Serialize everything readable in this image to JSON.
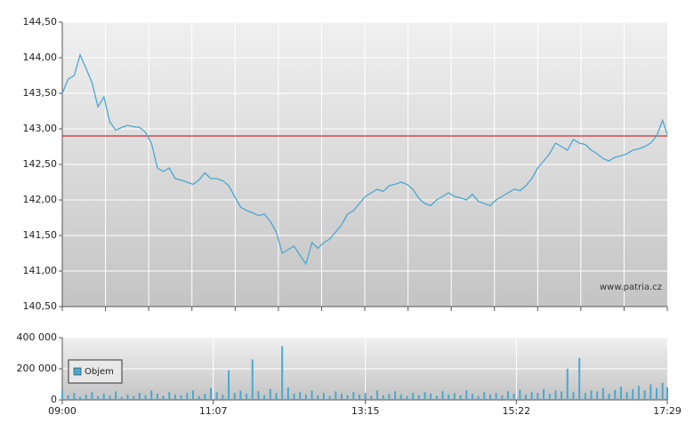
{
  "chart_data": [
    {
      "type": "line",
      "annotation": "www.patria.cz",
      "color": "#4aa8d0",
      "x": [
        0,
        5,
        10,
        15,
        20,
        25,
        30,
        35,
        40,
        45,
        50,
        55,
        60,
        65,
        70,
        75,
        80,
        85,
        90,
        95,
        100,
        105,
        110,
        115,
        120,
        125,
        130,
        135,
        140,
        145,
        150,
        155,
        160,
        165,
        170,
        175,
        180,
        185,
        190,
        195,
        200,
        205,
        210,
        215,
        220,
        225,
        230,
        235,
        240,
        245,
        250,
        255,
        260,
        265,
        270,
        275,
        280,
        285,
        290,
        295,
        300,
        305,
        310,
        315,
        320,
        325,
        330,
        335,
        340,
        345,
        350,
        355,
        360,
        365,
        370,
        375,
        380,
        385,
        390,
        395,
        400,
        405,
        410,
        415,
        420,
        425,
        430,
        435,
        440,
        445,
        450,
        455,
        460,
        465,
        470,
        475,
        480,
        485,
        490,
        495,
        500,
        505,
        509
      ],
      "values": [
        143.5,
        143.7,
        143.75,
        144.04,
        143.85,
        143.65,
        143.31,
        143.45,
        143.1,
        142.98,
        143.02,
        143.05,
        143.03,
        143.02,
        142.95,
        142.8,
        142.45,
        142.4,
        142.45,
        142.3,
        142.28,
        142.25,
        142.22,
        142.28,
        142.38,
        142.3,
        142.3,
        142.27,
        142.2,
        142.05,
        141.9,
        141.85,
        141.82,
        141.78,
        141.8,
        141.7,
        141.55,
        141.25,
        141.3,
        141.35,
        141.22,
        141.1,
        141.4,
        141.32,
        141.4,
        141.45,
        141.55,
        141.65,
        141.8,
        141.85,
        141.95,
        142.05,
        142.1,
        142.15,
        142.12,
        142.2,
        142.22,
        142.25,
        142.22,
        142.15,
        142.02,
        141.95,
        141.92,
        142.0,
        142.05,
        142.1,
        142.05,
        142.03,
        142.0,
        142.08,
        141.98,
        141.95,
        141.92,
        142.0,
        142.05,
        142.1,
        142.15,
        142.13,
        142.2,
        142.3,
        142.45,
        142.55,
        142.65,
        142.8,
        142.75,
        142.7,
        142.85,
        142.8,
        142.78,
        142.7,
        142.65,
        142.58,
        142.55,
        142.6,
        142.62,
        142.65,
        142.7,
        142.72,
        142.75,
        142.8,
        142.9,
        143.12,
        142.92
      ],
      "reference_line": {
        "value": 142.9,
        "color": "#cc0000"
      },
      "xlim": [
        0,
        509
      ],
      "xticks": [
        {
          "value": 0,
          "label": null
        },
        {
          "value": 36.36,
          "label": null
        },
        {
          "value": 72.71,
          "label": null
        },
        {
          "value": 109.07,
          "label": null
        },
        {
          "value": 145.43,
          "label": null
        },
        {
          "value": 181.79,
          "label": null
        },
        {
          "value": 218.14,
          "label": null
        },
        {
          "value": 254.5,
          "label": null
        },
        {
          "value": 290.86,
          "label": null
        },
        {
          "value": 327.21,
          "label": null
        },
        {
          "value": 363.57,
          "label": null
        },
        {
          "value": 399.93,
          "label": null
        },
        {
          "value": 436.29,
          "label": null
        },
        {
          "value": 472.64,
          "label": null
        },
        {
          "value": 509,
          "label": null
        }
      ],
      "ylim": [
        140.5,
        144.5
      ],
      "yticks": [
        {
          "value": 140.5,
          "label": "140,50"
        },
        {
          "value": 141,
          "label": "141,00"
        },
        {
          "value": 141.5,
          "label": "141,50"
        },
        {
          "value": 142,
          "label": "142,00"
        },
        {
          "value": 142.5,
          "label": "142,50"
        },
        {
          "value": 143,
          "label": "143,00"
        },
        {
          "value": 143.5,
          "label": "143,50"
        },
        {
          "value": 144,
          "label": "144,00"
        },
        {
          "value": 144.5,
          "label": "144,50"
        }
      ],
      "grid": true
    },
    {
      "type": "bar",
      "x": [
        0,
        5,
        10,
        15,
        20,
        25,
        30,
        35,
        40,
        45,
        50,
        55,
        60,
        65,
        70,
        75,
        80,
        85,
        90,
        95,
        100,
        105,
        110,
        115,
        120,
        125,
        130,
        135,
        140,
        145,
        150,
        155,
        160,
        165,
        170,
        175,
        180,
        185,
        190,
        195,
        200,
        205,
        210,
        215,
        220,
        225,
        230,
        235,
        240,
        245,
        250,
        255,
        260,
        265,
        270,
        275,
        280,
        285,
        290,
        295,
        300,
        305,
        310,
        315,
        320,
        325,
        330,
        335,
        340,
        345,
        350,
        355,
        360,
        365,
        370,
        375,
        380,
        385,
        390,
        395,
        400,
        405,
        410,
        415,
        420,
        425,
        430,
        435,
        440,
        445,
        450,
        455,
        460,
        465,
        470,
        475,
        480,
        485,
        490,
        495,
        500,
        505,
        509
      ],
      "series": [
        {
          "name": "Objem",
          "color": "#4aa8d0",
          "values": [
            60000,
            30000,
            45000,
            20000,
            35000,
            50000,
            25000,
            40000,
            30000,
            55000,
            20000,
            35000,
            25000,
            45000,
            30000,
            60000,
            40000,
            25000,
            50000,
            35000,
            30000,
            45000,
            60000,
            25000,
            40000,
            75000,
            50000,
            35000,
            190000,
            45000,
            60000,
            40000,
            260000,
            55000,
            30000,
            70000,
            45000,
            345000,
            80000,
            40000,
            50000,
            35000,
            60000,
            30000,
            45000,
            25000,
            55000,
            40000,
            30000,
            50000,
            35000,
            45000,
            25000,
            60000,
            30000,
            40000,
            55000,
            35000,
            25000,
            45000,
            30000,
            50000,
            40000,
            25000,
            55000,
            35000,
            45000,
            30000,
            60000,
            40000,
            25000,
            50000,
            35000,
            45000,
            30000,
            55000,
            40000,
            65000,
            35000,
            50000,
            45000,
            70000,
            40000,
            60000,
            55000,
            200000,
            50000,
            270000,
            45000,
            60000,
            55000,
            75000,
            40000,
            65000,
            85000,
            50000,
            70000,
            90000,
            60000,
            100000,
            75000,
            110000,
            80000
          ]
        }
      ],
      "legend": "upper left",
      "xlim": [
        0,
        509
      ],
      "xticks": [
        {
          "value": 0,
          "label": "09:00"
        },
        {
          "value": 127,
          "label": "11:07"
        },
        {
          "value": 255,
          "label": "13:15"
        },
        {
          "value": 382,
          "label": "15:22"
        },
        {
          "value": 509,
          "label": "17:29"
        }
      ],
      "ylim": [
        0,
        400000
      ],
      "yticks": [
        0,
        {
          "value": 200000,
          "label": "200 000"
        },
        {
          "value": 400000,
          "label": "400 000"
        }
      ],
      "grid": true
    }
  ]
}
